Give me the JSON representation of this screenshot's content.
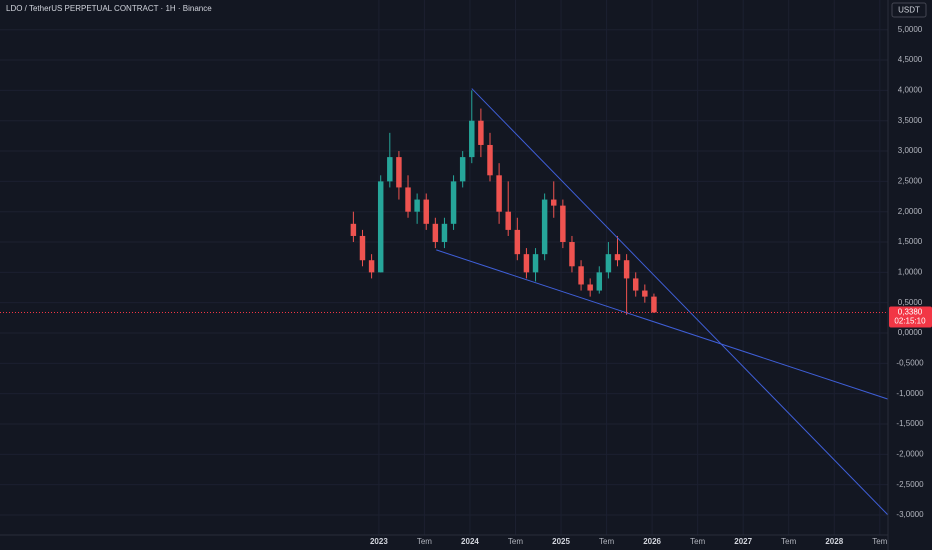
{
  "chart_data": {
    "type": "candlestick",
    "title": "LDO / TetherUS PERPETUAL CONTRACT · 1H · Binance",
    "currency": "USDT",
    "up_color": "#26a69a",
    "down_color": "#ef5350",
    "grid": true,
    "x": [
      2022.72,
      2022.82,
      2022.92,
      2023.02,
      2023.12,
      2023.22,
      2023.32,
      2023.42,
      2023.52,
      2023.62,
      2023.72,
      2023.82,
      2023.92,
      2024.02,
      2024.12,
      2024.22,
      2024.32,
      2024.42,
      2024.52,
      2024.62,
      2024.72,
      2024.82,
      2024.92,
      2025.02,
      2025.12,
      2025.22,
      2025.32,
      2025.42,
      2025.52,
      2025.62,
      2025.72,
      2025.82,
      2025.92,
      2026.02
    ],
    "open": [
      1.8,
      1.6,
      1.2,
      1.0,
      2.5,
      2.9,
      2.4,
      2.0,
      2.2,
      1.8,
      1.5,
      1.8,
      2.5,
      2.9,
      3.5,
      3.1,
      2.6,
      2.0,
      1.7,
      1.3,
      1.0,
      1.3,
      2.2,
      2.1,
      1.5,
      1.1,
      0.8,
      0.7,
      1.0,
      1.3,
      1.2,
      0.9,
      0.7,
      0.6
    ],
    "high": [
      2.0,
      1.7,
      1.3,
      2.6,
      3.3,
      3.0,
      2.6,
      2.3,
      2.3,
      1.9,
      1.9,
      2.6,
      3.0,
      4.0,
      3.7,
      3.3,
      2.8,
      2.5,
      1.9,
      1.4,
      1.4,
      2.3,
      2.5,
      2.2,
      1.6,
      1.2,
      0.9,
      1.1,
      1.5,
      1.6,
      1.3,
      1.0,
      0.8,
      0.65
    ],
    "low": [
      1.5,
      1.1,
      0.9,
      1.0,
      2.4,
      2.2,
      1.9,
      1.8,
      1.7,
      1.4,
      1.4,
      1.7,
      2.4,
      2.8,
      2.9,
      2.5,
      1.8,
      1.6,
      1.2,
      0.9,
      0.85,
      1.2,
      1.9,
      1.4,
      1.0,
      0.7,
      0.6,
      0.65,
      0.9,
      1.1,
      0.3,
      0.6,
      0.5,
      0.33
    ],
    "close": [
      1.6,
      1.2,
      1.0,
      2.5,
      2.9,
      2.4,
      2.0,
      2.2,
      1.8,
      1.5,
      1.8,
      2.5,
      2.9,
      3.5,
      3.1,
      2.6,
      2.0,
      1.7,
      1.3,
      1.0,
      1.3,
      2.2,
      2.1,
      1.5,
      1.1,
      0.8,
      0.7,
      1.0,
      1.3,
      1.2,
      0.9,
      0.7,
      0.6,
      0.34
    ],
    "trendlines": [
      {
        "color": "#3f5fd8",
        "x": [
          2024.02,
          2028.59
        ],
        "y": [
          4.03,
          -3.0
        ]
      },
      {
        "color": "#3f5fd8",
        "x": [
          2023.63,
          2028.59
        ],
        "y": [
          1.37,
          -1.09
        ]
      }
    ],
    "last_price": {
      "value": 0.338,
      "label": "0,3380"
    },
    "countdown": "02:15:10",
    "last_price_color": "#f23645",
    "xlim": [
      2018.84,
      2028.59
    ],
    "ylim": [
      -3.33,
      5.49
    ],
    "xticks": [
      {
        "value": 2023,
        "label": "2023"
      },
      {
        "value": 2023.5,
        "label": "Tem"
      },
      {
        "value": 2024,
        "label": "2024"
      },
      {
        "value": 2024.5,
        "label": "Tem"
      },
      {
        "value": 2025,
        "label": "2025"
      },
      {
        "value": 2025.5,
        "label": "Tem"
      },
      {
        "value": 2026,
        "label": "2026"
      },
      {
        "value": 2026.5,
        "label": "Tem"
      },
      {
        "value": 2027,
        "label": "2027"
      },
      {
        "value": 2027.5,
        "label": "Tem"
      },
      {
        "value": 2028,
        "label": "2028"
      },
      {
        "value": 2028.5,
        "label": "Tem"
      }
    ],
    "yticks": [
      {
        "value": 5,
        "label": "5,0000"
      },
      {
        "value": 4.5,
        "label": "4,5000"
      },
      {
        "value": 4,
        "label": "4,0000"
      },
      {
        "value": 3.5,
        "label": "3,5000"
      },
      {
        "value": 3,
        "label": "3,0000"
      },
      {
        "value": 2.5,
        "label": "2,5000"
      },
      {
        "value": 2,
        "label": "2,0000"
      },
      {
        "value": 1.5,
        "label": "1,5000"
      },
      {
        "value": 1,
        "label": "1,0000"
      },
      {
        "value": 0.5,
        "label": "0,5000"
      },
      {
        "value": 0,
        "label": "0,0000"
      },
      {
        "value": -0.5,
        "label": "-0,5000"
      },
      {
        "value": -1,
        "label": "-1,0000"
      },
      {
        "value": -1.5,
        "label": "-1,5000"
      },
      {
        "value": -2,
        "label": "-2,0000"
      },
      {
        "value": -2.5,
        "label": "-2,5000"
      },
      {
        "value": -3,
        "label": "-3,0000"
      }
    ]
  }
}
